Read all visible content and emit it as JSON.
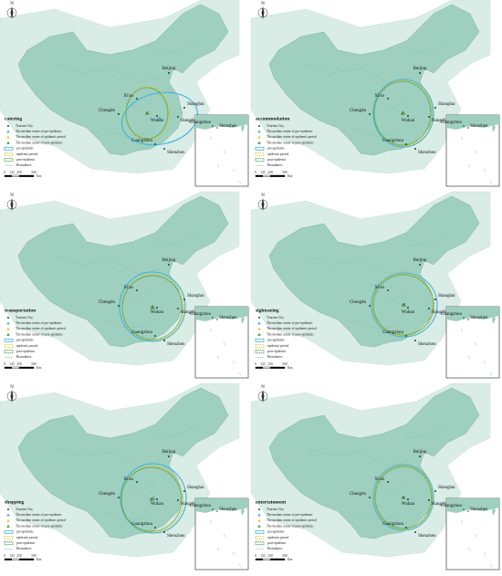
{
  "north": "N",
  "panels": [
    {
      "title": "catering"
    },
    {
      "title": "accommodation"
    },
    {
      "title": "transportation"
    },
    {
      "title": "sightseeing"
    },
    {
      "title": "shopping"
    },
    {
      "title": "entertainment"
    }
  ],
  "cities": [
    "Beijing",
    "Xi'an",
    "Chengdu",
    "Wuhan",
    "Shanghai",
    "Hangzhou",
    "Guangzhou",
    "Shenzhen"
  ],
  "inset_cities": [
    "Guangzhou",
    "Shenzhen"
  ],
  "legend": [
    "Tourism City",
    "The median center of pre-epidemic",
    "The median center of epidemic period",
    "The median center of post-epidemic",
    "pre-epidemic",
    "epidemic period",
    "post-epidemic",
    "Boundaries"
  ],
  "scale": {
    "labels": [
      "0",
      "125",
      "250",
      "500"
    ],
    "unit": "Km"
  }
}
